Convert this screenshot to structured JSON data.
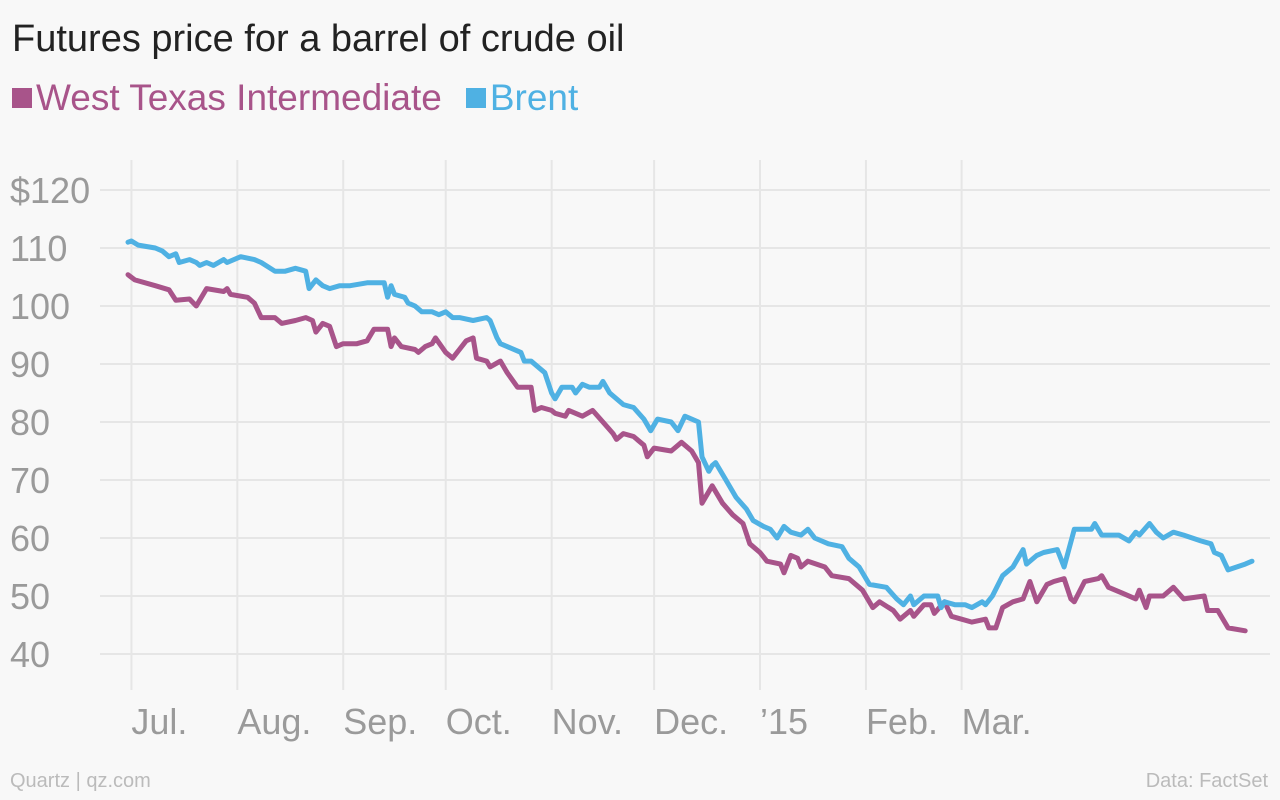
{
  "title": "Futures price for a barrel of crude oil",
  "legend": {
    "wti": {
      "label": "West Texas Intermediate",
      "color": "#a8548a"
    },
    "brent": {
      "label": "Brent",
      "color": "#4fb1e3"
    }
  },
  "footer": {
    "source_left": "Quartz | qz.com",
    "source_right": "Data: FactSet"
  },
  "chart_data": {
    "type": "line",
    "title": "Futures price for a barrel of crude oil",
    "x_ticks": [
      {
        "label": "Jul.",
        "date": "2014-07-01"
      },
      {
        "label": "Aug.",
        "date": "2014-08-01"
      },
      {
        "label": "Sep.",
        "date": "2014-09-01"
      },
      {
        "label": "Oct.",
        "date": "2014-10-01"
      },
      {
        "label": "Nov.",
        "date": "2014-11-01"
      },
      {
        "label": "Dec.",
        "date": "2014-12-01"
      },
      {
        "label": "’15",
        "date": "2015-01-01"
      },
      {
        "label": "Feb.",
        "date": "2015-02-01"
      },
      {
        "label": "Mar.",
        "date": "2015-03-01"
      }
    ],
    "y_ticks": [
      "$120",
      "110",
      "100",
      "90",
      "80",
      "70",
      "60",
      "50",
      "40"
    ],
    "ylim": [
      40,
      120
    ],
    "grid": true,
    "legend_position": "top-left",
    "series": [
      {
        "name": "West Texas Intermediate",
        "color": "#a8548a",
        "points": [
          [
            "2014-06-30",
            105.4
          ],
          [
            "2014-07-02",
            104.5
          ],
          [
            "2014-07-08",
            103.5
          ],
          [
            "2014-07-12",
            102.8
          ],
          [
            "2014-07-14",
            101.0
          ],
          [
            "2014-07-18",
            101.2
          ],
          [
            "2014-07-20",
            100.0
          ],
          [
            "2014-07-23",
            103.0
          ],
          [
            "2014-07-28",
            102.5
          ],
          [
            "2014-07-29",
            103.0
          ],
          [
            "2014-07-30",
            102.0
          ],
          [
            "2014-08-04",
            101.5
          ],
          [
            "2014-08-06",
            100.5
          ],
          [
            "2014-08-08",
            98.0
          ],
          [
            "2014-08-12",
            98.0
          ],
          [
            "2014-08-14",
            97.0
          ],
          [
            "2014-08-18",
            97.5
          ],
          [
            "2014-08-21",
            98.0
          ],
          [
            "2014-08-23",
            97.5
          ],
          [
            "2014-08-24",
            95.5
          ],
          [
            "2014-08-26",
            97.0
          ],
          [
            "2014-08-28",
            96.5
          ],
          [
            "2014-08-30",
            93.0
          ],
          [
            "2014-09-01",
            93.5
          ],
          [
            "2014-09-05",
            93.5
          ],
          [
            "2014-09-08",
            94.0
          ],
          [
            "2014-09-10",
            96.0
          ],
          [
            "2014-09-14",
            96.0
          ],
          [
            "2014-09-15",
            93.0
          ],
          [
            "2014-09-16",
            94.5
          ],
          [
            "2014-09-18",
            93.0
          ],
          [
            "2014-09-22",
            92.5
          ],
          [
            "2014-09-23",
            92.0
          ],
          [
            "2014-09-25",
            93.0
          ],
          [
            "2014-09-27",
            93.5
          ],
          [
            "2014-09-28",
            94.5
          ],
          [
            "2014-10-01",
            92.0
          ],
          [
            "2014-10-03",
            91.0
          ],
          [
            "2014-10-05",
            92.5
          ],
          [
            "2014-10-07",
            94.0
          ],
          [
            "2014-10-09",
            94.5
          ],
          [
            "2014-10-10",
            91.0
          ],
          [
            "2014-10-13",
            90.5
          ],
          [
            "2014-10-14",
            89.5
          ],
          [
            "2014-10-17",
            90.5
          ],
          [
            "2014-10-19",
            88.5
          ],
          [
            "2014-10-22",
            86.0
          ],
          [
            "2014-10-26",
            86.0
          ],
          [
            "2014-10-27",
            82.0
          ],
          [
            "2014-10-29",
            82.5
          ],
          [
            "2014-11-01",
            82.0
          ],
          [
            "2014-11-02",
            81.5
          ],
          [
            "2014-11-05",
            81.0
          ],
          [
            "2014-11-06",
            82.0
          ],
          [
            "2014-11-10",
            81.0
          ],
          [
            "2014-11-13",
            82.0
          ],
          [
            "2014-11-16",
            80.0
          ],
          [
            "2014-11-19",
            78.0
          ],
          [
            "2014-11-20",
            77.0
          ],
          [
            "2014-11-22",
            78.0
          ],
          [
            "2014-11-25",
            77.5
          ],
          [
            "2014-11-28",
            76.0
          ],
          [
            "2014-11-29",
            74.0
          ],
          [
            "2014-12-01",
            75.5
          ],
          [
            "2014-12-06",
            75.0
          ],
          [
            "2014-12-09",
            76.5
          ],
          [
            "2014-12-12",
            75.0
          ],
          [
            "2014-12-14",
            73.0
          ],
          [
            "2014-12-15",
            66.0
          ],
          [
            "2014-12-18",
            69.0
          ],
          [
            "2014-12-21",
            66.0
          ],
          [
            "2014-12-24",
            64.0
          ],
          [
            "2014-12-27",
            62.5
          ],
          [
            "2014-12-29",
            59.0
          ],
          [
            "2015-01-01",
            57.5
          ],
          [
            "2015-01-03",
            56.0
          ],
          [
            "2015-01-07",
            55.5
          ],
          [
            "2015-01-08",
            54.0
          ],
          [
            "2015-01-10",
            57.0
          ],
          [
            "2015-01-12",
            56.5
          ],
          [
            "2015-01-13",
            55.0
          ],
          [
            "2015-01-15",
            56.0
          ],
          [
            "2015-01-20",
            55.0
          ],
          [
            "2015-01-22",
            53.5
          ],
          [
            "2015-01-27",
            53.0
          ],
          [
            "2015-01-31",
            51.0
          ],
          [
            "2015-02-03",
            48.0
          ],
          [
            "2015-02-05",
            49.0
          ],
          [
            "2015-02-09",
            47.5
          ],
          [
            "2015-02-11",
            46.0
          ],
          [
            "2015-02-14",
            47.5
          ],
          [
            "2015-02-15",
            46.5
          ],
          [
            "2015-02-18",
            48.5
          ],
          [
            "2015-02-20",
            48.5
          ],
          [
            "2015-02-21",
            47.0
          ],
          [
            "2015-02-24",
            49.0
          ],
          [
            "2015-02-26",
            46.5
          ],
          [
            "2015-03-01",
            46.0
          ],
          [
            "2015-03-04",
            45.5
          ],
          [
            "2015-03-08",
            46.0
          ],
          [
            "2015-03-09",
            44.5
          ],
          [
            "2015-03-11",
            44.5
          ],
          [
            "2015-03-13",
            48.0
          ],
          [
            "2015-03-16",
            49.0
          ],
          [
            "2015-03-19",
            49.5
          ],
          [
            "2015-03-21",
            52.5
          ],
          [
            "2015-03-23",
            49.0
          ],
          [
            "2015-03-26",
            52.0
          ],
          [
            "2015-03-28",
            52.5
          ],
          [
            "2015-03-31",
            53.0
          ],
          [
            "2015-04-02",
            49.5
          ],
          [
            "2015-04-03",
            49.0
          ],
          [
            "2015-04-06",
            52.5
          ],
          [
            "2015-04-10",
            53.0
          ],
          [
            "2015-04-11",
            53.5
          ],
          [
            "2015-04-13",
            51.5
          ],
          [
            "2015-04-17",
            50.5
          ],
          [
            "2015-04-21",
            49.5
          ],
          [
            "2015-04-22",
            51.0
          ],
          [
            "2015-04-24",
            48.0
          ],
          [
            "2015-04-25",
            50.0
          ],
          [
            "2015-04-29",
            50.0
          ],
          [
            "2015-05-02",
            51.5
          ],
          [
            "2015-05-05",
            49.5
          ],
          [
            "2015-05-11",
            50.0
          ],
          [
            "2015-05-12",
            47.5
          ],
          [
            "2015-05-15",
            47.5
          ],
          [
            "2015-05-18",
            44.5
          ],
          [
            "2015-05-23",
            44.0
          ]
        ]
      },
      {
        "name": "Brent",
        "color": "#4fb1e3",
        "points": [
          [
            "2014-06-30",
            111.0
          ],
          [
            "2014-07-01",
            111.2
          ],
          [
            "2014-07-03",
            110.5
          ],
          [
            "2014-07-08",
            110.0
          ],
          [
            "2014-07-10",
            109.5
          ],
          [
            "2014-07-12",
            108.5
          ],
          [
            "2014-07-14",
            109.0
          ],
          [
            "2014-07-15",
            107.5
          ],
          [
            "2014-07-18",
            108.0
          ],
          [
            "2014-07-20",
            107.5
          ],
          [
            "2014-07-21",
            107.0
          ],
          [
            "2014-07-23",
            107.5
          ],
          [
            "2014-07-25",
            107.0
          ],
          [
            "2014-07-28",
            108.0
          ],
          [
            "2014-07-29",
            107.5
          ],
          [
            "2014-08-02",
            108.5
          ],
          [
            "2014-08-06",
            108.0
          ],
          [
            "2014-08-08",
            107.5
          ],
          [
            "2014-08-12",
            106.0
          ],
          [
            "2014-08-15",
            106.0
          ],
          [
            "2014-08-18",
            106.5
          ],
          [
            "2014-08-21",
            106.0
          ],
          [
            "2014-08-22",
            103.0
          ],
          [
            "2014-08-24",
            104.5
          ],
          [
            "2014-08-26",
            103.5
          ],
          [
            "2014-08-28",
            103.0
          ],
          [
            "2014-08-31",
            103.5
          ],
          [
            "2014-09-03",
            103.5
          ],
          [
            "2014-09-08",
            104.0
          ],
          [
            "2014-09-10",
            104.0
          ],
          [
            "2014-09-13",
            104.0
          ],
          [
            "2014-09-14",
            101.5
          ],
          [
            "2014-09-15",
            103.5
          ],
          [
            "2014-09-16",
            102.0
          ],
          [
            "2014-09-19",
            101.5
          ],
          [
            "2014-09-20",
            100.5
          ],
          [
            "2014-09-22",
            100.0
          ],
          [
            "2014-09-24",
            99.0
          ],
          [
            "2014-09-27",
            99.0
          ],
          [
            "2014-09-29",
            98.5
          ],
          [
            "2014-10-01",
            99.0
          ],
          [
            "2014-10-03",
            98.0
          ],
          [
            "2014-10-05",
            98.0
          ],
          [
            "2014-10-09",
            97.5
          ],
          [
            "2014-10-13",
            98.0
          ],
          [
            "2014-10-14",
            97.5
          ],
          [
            "2014-10-16",
            94.5
          ],
          [
            "2014-10-17",
            93.5
          ],
          [
            "2014-10-19",
            93.0
          ],
          [
            "2014-10-23",
            92.0
          ],
          [
            "2014-10-24",
            90.5
          ],
          [
            "2014-10-26",
            90.5
          ],
          [
            "2014-10-28",
            89.5
          ],
          [
            "2014-10-30",
            88.5
          ],
          [
            "2014-11-01",
            85.0
          ],
          [
            "2014-11-02",
            84.0
          ],
          [
            "2014-11-04",
            86.0
          ],
          [
            "2014-11-07",
            86.0
          ],
          [
            "2014-11-08",
            85.0
          ],
          [
            "2014-11-10",
            86.5
          ],
          [
            "2014-11-12",
            86.0
          ],
          [
            "2014-11-15",
            86.0
          ],
          [
            "2014-11-16",
            87.0
          ],
          [
            "2014-11-18",
            85.0
          ],
          [
            "2014-11-22",
            83.0
          ],
          [
            "2014-11-25",
            82.5
          ],
          [
            "2014-11-28",
            80.5
          ],
          [
            "2014-11-30",
            78.5
          ],
          [
            "2014-12-02",
            80.5
          ],
          [
            "2014-12-06",
            80.0
          ],
          [
            "2014-12-08",
            78.5
          ],
          [
            "2014-12-10",
            81.0
          ],
          [
            "2014-12-14",
            80.0
          ],
          [
            "2014-12-15",
            74.0
          ],
          [
            "2014-12-17",
            71.5
          ],
          [
            "2014-12-18",
            72.5
          ],
          [
            "2014-12-19",
            73.0
          ],
          [
            "2014-12-22",
            70.0
          ],
          [
            "2014-12-25",
            67.0
          ],
          [
            "2014-12-28",
            65.0
          ],
          [
            "2014-12-30",
            63.0
          ],
          [
            "2015-01-02",
            62.0
          ],
          [
            "2015-01-04",
            61.5
          ],
          [
            "2015-01-06",
            60.0
          ],
          [
            "2015-01-08",
            62.0
          ],
          [
            "2015-01-10",
            61.0
          ],
          [
            "2015-01-13",
            60.5
          ],
          [
            "2015-01-15",
            61.5
          ],
          [
            "2015-01-17",
            60.0
          ],
          [
            "2015-01-21",
            59.0
          ],
          [
            "2015-01-25",
            58.5
          ],
          [
            "2015-01-27",
            56.5
          ],
          [
            "2015-01-30",
            55.0
          ],
          [
            "2015-02-02",
            52.0
          ],
          [
            "2015-02-07",
            51.5
          ],
          [
            "2015-02-10",
            49.5
          ],
          [
            "2015-02-12",
            48.5
          ],
          [
            "2015-02-14",
            50.0
          ],
          [
            "2015-02-15",
            48.5
          ],
          [
            "2015-02-18",
            50.0
          ],
          [
            "2015-02-22",
            50.0
          ],
          [
            "2015-02-23",
            48.0
          ],
          [
            "2015-02-24",
            49.0
          ],
          [
            "2015-02-27",
            48.5
          ],
          [
            "2015-03-02",
            48.5
          ],
          [
            "2015-03-04",
            48.0
          ],
          [
            "2015-03-07",
            49.0
          ],
          [
            "2015-03-08",
            48.5
          ],
          [
            "2015-03-10",
            50.0
          ],
          [
            "2015-03-13",
            53.5
          ],
          [
            "2015-03-16",
            55.0
          ],
          [
            "2015-03-19",
            58.0
          ],
          [
            "2015-03-20",
            55.5
          ],
          [
            "2015-03-23",
            57.0
          ],
          [
            "2015-03-25",
            57.5
          ],
          [
            "2015-03-29",
            58.0
          ],
          [
            "2015-03-31",
            55.0
          ],
          [
            "2015-04-03",
            61.5
          ],
          [
            "2015-04-08",
            61.5
          ],
          [
            "2015-04-09",
            62.5
          ],
          [
            "2015-04-11",
            60.5
          ],
          [
            "2015-04-16",
            60.5
          ],
          [
            "2015-04-19",
            59.5
          ],
          [
            "2015-04-21",
            61.0
          ],
          [
            "2015-04-22",
            60.5
          ],
          [
            "2015-04-25",
            62.5
          ],
          [
            "2015-04-27",
            61.0
          ],
          [
            "2015-04-29",
            60.0
          ],
          [
            "2015-05-02",
            61.0
          ],
          [
            "2015-05-05",
            60.5
          ],
          [
            "2015-05-10",
            59.5
          ],
          [
            "2015-05-13",
            59.0
          ],
          [
            "2015-05-14",
            57.5
          ],
          [
            "2015-05-16",
            57.0
          ],
          [
            "2015-05-18",
            54.5
          ],
          [
            "2015-05-23",
            55.5
          ],
          [
            "2015-05-25",
            56.0
          ]
        ]
      }
    ]
  }
}
